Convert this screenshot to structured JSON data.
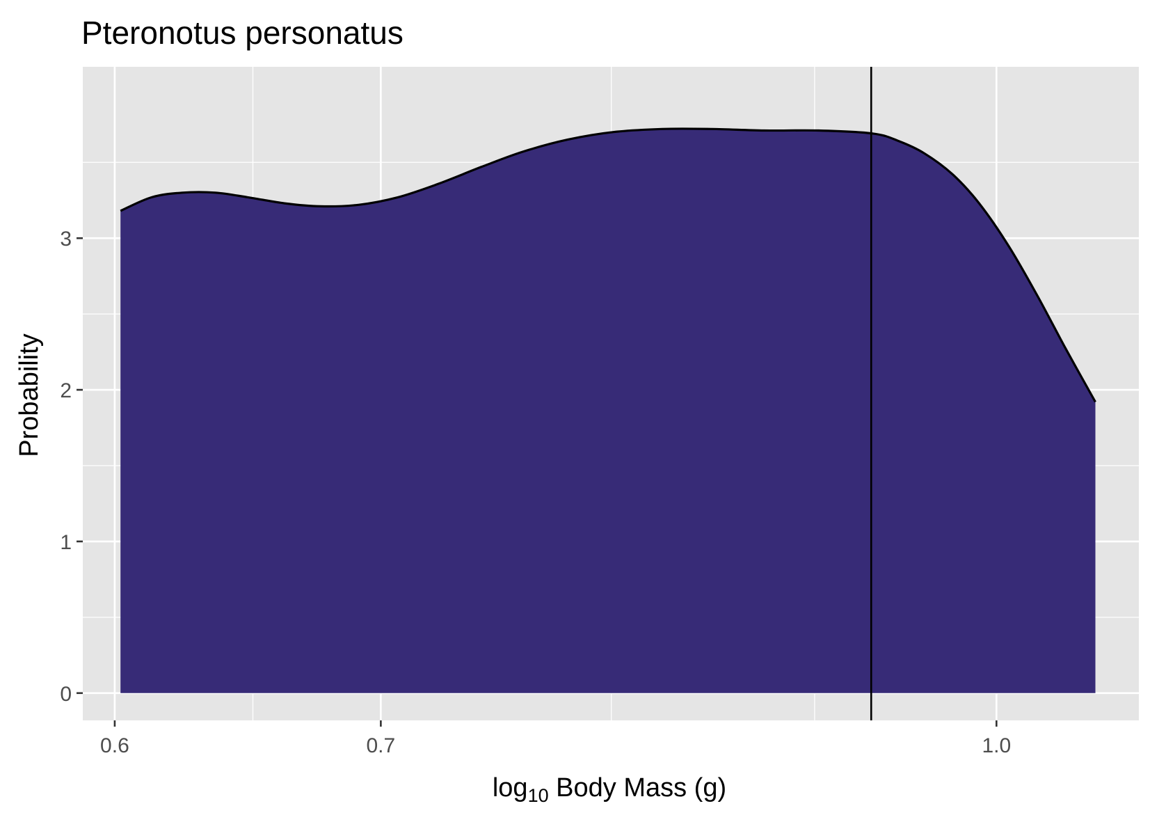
{
  "chart_data": {
    "type": "area",
    "title": "Pteronotus personatus",
    "xlabel": {
      "prefix": "log",
      "subscript": "10",
      "suffix": " Body Mass (g)"
    },
    "ylabel": "Probability",
    "x_scale": "log10",
    "xlim": [
      0.589,
      1.086
    ],
    "ylim": [
      -0.18,
      4.13
    ],
    "x_ticks": [
      {
        "value": 0.6,
        "label": "0.6"
      },
      {
        "value": 0.7,
        "label": "0.7"
      },
      {
        "value": 1.0,
        "label": "1.0"
      }
    ],
    "x_minor_ticks": [
      0.65,
      0.8,
      0.9
    ],
    "y_ticks": [
      {
        "value": 0,
        "label": "0"
      },
      {
        "value": 1,
        "label": "1"
      },
      {
        "value": 2,
        "label": "2"
      },
      {
        "value": 3,
        "label": "3"
      }
    ],
    "y_minor_ticks": [
      0.5,
      1.5,
      2.5,
      3.5
    ],
    "grid": true,
    "fill_color": "#372B77",
    "line_color": "#000000",
    "panel_color": "#E5E5E5",
    "vline_x": 0.93,
    "series": [
      {
        "x": [
          0.602,
          0.613,
          0.624,
          0.636,
          0.648,
          0.662,
          0.676,
          0.691,
          0.707,
          0.724,
          0.742,
          0.76,
          0.78,
          0.801,
          0.824,
          0.848,
          0.874,
          0.902,
          0.931,
          0.945,
          0.959,
          0.975,
          0.99,
          1.007,
          1.024,
          1.041,
          1.059
        ],
        "y": [
          3.18,
          3.27,
          3.3,
          3.3,
          3.27,
          3.23,
          3.21,
          3.22,
          3.27,
          3.36,
          3.47,
          3.57,
          3.65,
          3.7,
          3.72,
          3.72,
          3.71,
          3.71,
          3.69,
          3.64,
          3.56,
          3.42,
          3.23,
          2.95,
          2.62,
          2.27,
          1.92
        ]
      }
    ]
  }
}
